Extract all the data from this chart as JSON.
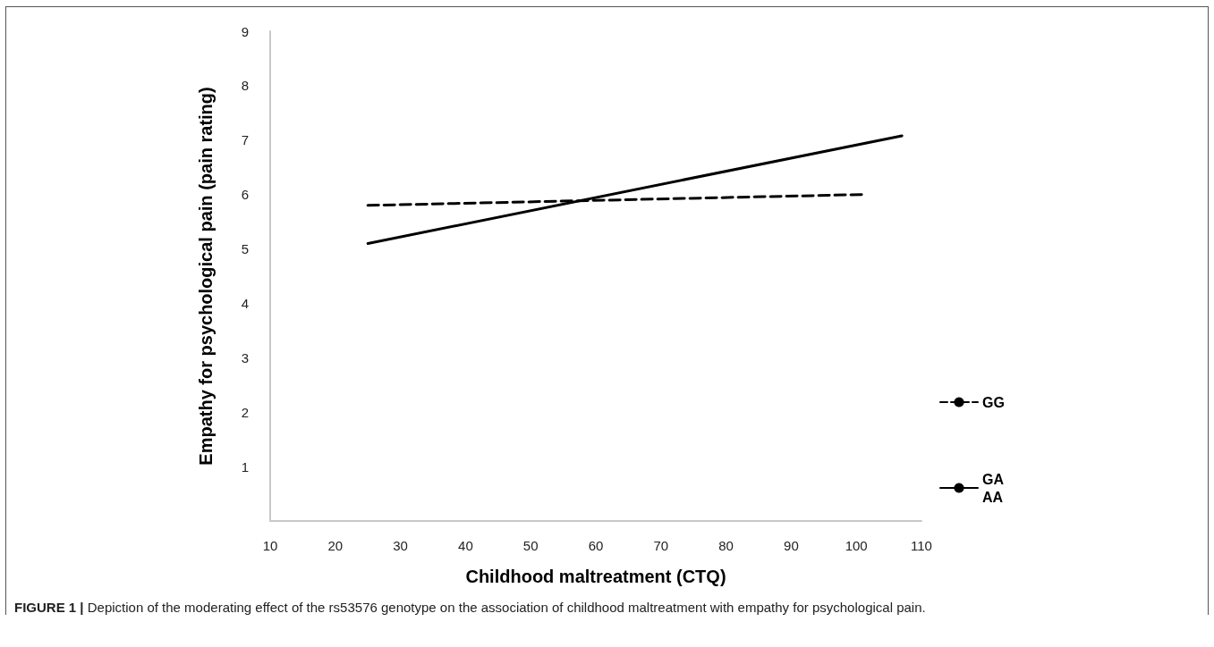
{
  "chart_data": {
    "type": "line",
    "xlabel": "Childhood maltreatment (CTQ)",
    "ylabel": "Empathy for psychological pain (pain rating)",
    "xlim": [
      10,
      110
    ],
    "xticks": [
      10,
      20,
      30,
      40,
      50,
      60,
      70,
      80,
      90,
      100,
      110
    ],
    "ylim": [
      0,
      9
    ],
    "yticks": [
      1,
      2,
      3,
      4,
      5,
      6,
      7,
      8,
      9
    ],
    "series": [
      {
        "name": "GG",
        "color": "#000000",
        "line_style": "dashed",
        "x": [
          25,
          101
        ],
        "values": [
          5.8,
          6.0
        ]
      },
      {
        "name": "GA\nAA",
        "color": "#000000",
        "line_style": "solid",
        "x": [
          25,
          107
        ],
        "values": [
          5.1,
          7.08
        ]
      }
    ],
    "grid": false,
    "legend": "right",
    "marker": "none",
    "annotations": [
      "FIGURE 1 | Depiction of the moderating effect of the rs53576 genotype on the association of childhood maltreatment with empathy for psychological pain."
    ]
  }
}
